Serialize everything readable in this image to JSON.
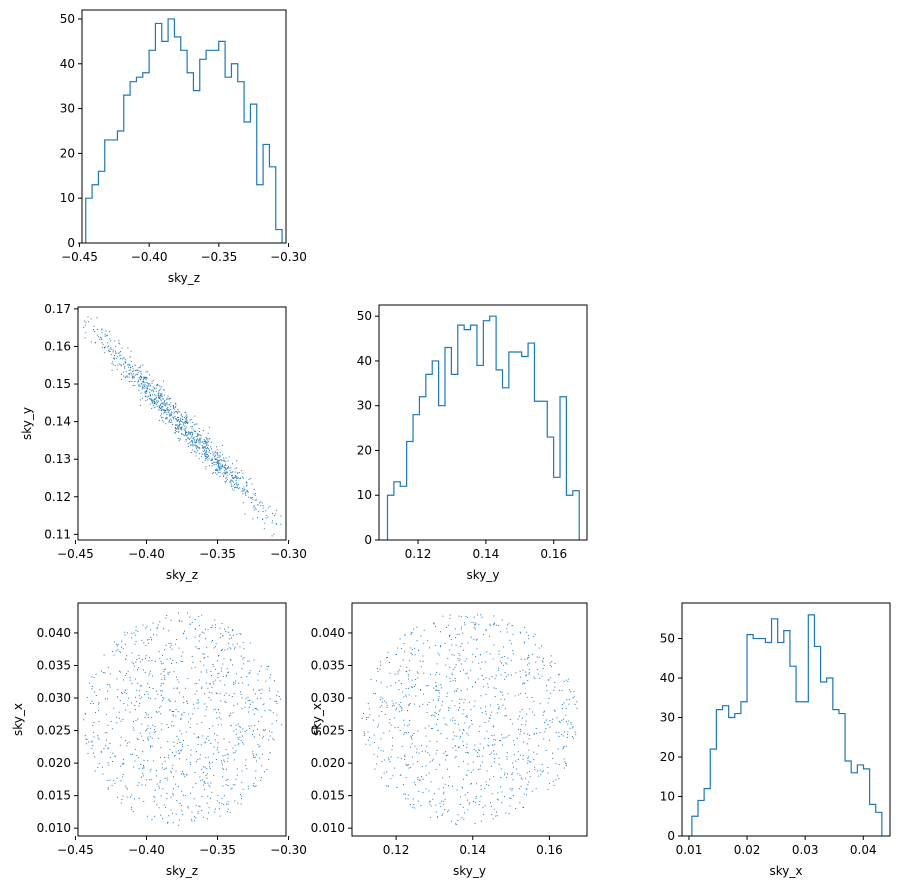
{
  "chart_data": [
    {
      "id": "hist_sky_z",
      "type": "histogram",
      "xlabel": "sky_z",
      "ylabel": "",
      "xlim": [
        -0.4482,
        -0.3018
      ],
      "ylim": [
        0,
        52
      ],
      "xticks": [
        -0.45,
        -0.4,
        -0.35,
        -0.3
      ],
      "xtick_labels": [
        "−0.45",
        "−0.40",
        "−0.35",
        "−0.30"
      ],
      "yticks": [
        0,
        10,
        20,
        30,
        40,
        50
      ],
      "ytick_labels": [
        "0",
        "10",
        "20",
        "30",
        "40",
        "50"
      ],
      "bin_range": [
        -0.4455,
        -0.3046
      ],
      "counts": [
        10,
        13,
        16,
        23,
        23,
        25,
        33,
        36,
        37,
        38,
        43,
        49,
        45,
        50,
        46,
        43,
        38,
        34,
        41,
        43,
        43,
        45,
        37,
        40,
        36,
        27,
        31,
        13,
        22,
        17,
        3
      ]
    },
    {
      "id": "scatter_sky_z_sky_y",
      "type": "scatter",
      "xlabel": "sky_z",
      "ylabel": "sky_y",
      "xlim": [
        -0.4482,
        -0.3018
      ],
      "ylim": [
        0.1085,
        0.1705
      ],
      "xticks": [
        -0.45,
        -0.4,
        -0.35,
        -0.3
      ],
      "xtick_labels": [
        "−0.45",
        "−0.40",
        "−0.35",
        "−0.30"
      ],
      "yticks": [
        0.11,
        0.12,
        0.13,
        0.14,
        0.15,
        0.16,
        0.17
      ],
      "ytick_labels": [
        "0.11",
        "0.12",
        "0.13",
        "0.14",
        "0.15",
        "0.16",
        "0.17"
      ],
      "n_points": 1000,
      "relation": "y ≈ 0.1385 − 0.382·(x + 0.376), narrow band",
      "x_range": [
        -0.4455,
        -0.3046
      ],
      "y_range": [
        0.111,
        0.1675
      ]
    },
    {
      "id": "hist_sky_y",
      "type": "histogram",
      "xlabel": "sky_y",
      "ylabel": "",
      "xlim": [
        0.1085,
        0.1698
      ],
      "ylim": [
        0,
        52.5
      ],
      "xticks": [
        0.12,
        0.14,
        0.16
      ],
      "xtick_labels": [
        "0.12",
        "0.14",
        "0.16"
      ],
      "yticks": [
        0,
        10,
        20,
        30,
        40,
        50
      ],
      "ytick_labels": [
        "0",
        "10",
        "20",
        "30",
        "40",
        "50"
      ],
      "bin_range": [
        0.111,
        0.1675
      ],
      "counts": [
        10,
        13,
        12,
        22,
        28,
        32,
        37,
        40,
        30,
        43,
        37,
        48,
        47,
        48,
        39,
        49,
        50,
        38,
        34,
        42,
        42,
        41,
        44,
        31,
        31,
        23,
        14,
        32,
        10,
        11
      ]
    },
    {
      "id": "scatter_sky_z_sky_x",
      "type": "scatter",
      "xlabel": "sky_z",
      "ylabel": "sky_x",
      "xlim": [
        -0.4482,
        -0.3018
      ],
      "ylim": [
        0.0088,
        0.0446
      ],
      "xticks": [
        -0.45,
        -0.4,
        -0.35,
        -0.3
      ],
      "xtick_labels": [
        "−0.45",
        "−0.40",
        "−0.35",
        "−0.30"
      ],
      "yticks": [
        0.01,
        0.015,
        0.02,
        0.025,
        0.03,
        0.035,
        0.04
      ],
      "ytick_labels": [
        "0.010",
        "0.015",
        "0.020",
        "0.025",
        "0.030",
        "0.035",
        "0.040"
      ],
      "n_points": 1000,
      "relation": "uncorrelated, roughly circular cloud",
      "x_range": [
        -0.4455,
        -0.3046
      ],
      "y_range": [
        0.0105,
        0.0432
      ]
    },
    {
      "id": "scatter_sky_y_sky_x",
      "type": "scatter",
      "xlabel": "sky_y",
      "ylabel": "sky_x",
      "xlim": [
        0.1085,
        0.1698
      ],
      "ylim": [
        0.0088,
        0.0446
      ],
      "xticks": [
        0.12,
        0.14,
        0.16
      ],
      "xtick_labels": [
        "0.12",
        "0.14",
        "0.16"
      ],
      "yticks": [
        0.01,
        0.015,
        0.02,
        0.025,
        0.03,
        0.035,
        0.04
      ],
      "ytick_labels": [
        "0.010",
        "0.015",
        "0.020",
        "0.025",
        "0.030",
        "0.035",
        "0.040"
      ],
      "n_points": 1000,
      "relation": "uncorrelated, roughly circular cloud",
      "x_range": [
        0.111,
        0.1675
      ],
      "y_range": [
        0.0105,
        0.0432
      ]
    },
    {
      "id": "hist_sky_x",
      "type": "histogram",
      "xlabel": "sky_x",
      "ylabel": "",
      "xlim": [
        0.0088,
        0.0446
      ],
      "ylim": [
        0,
        59
      ],
      "xticks": [
        0.01,
        0.02,
        0.03,
        0.04
      ],
      "xtick_labels": [
        "0.01",
        "0.02",
        "0.03",
        "0.04"
      ],
      "yticks": [
        0,
        10,
        20,
        30,
        40,
        50
      ],
      "ytick_labels": [
        "0",
        "10",
        "20",
        "30",
        "40",
        "50"
      ],
      "bin_range": [
        0.0105,
        0.0432
      ],
      "counts": [
        5,
        9,
        12,
        22,
        32,
        33,
        30,
        31,
        34,
        51,
        50,
        50,
        49,
        55,
        49,
        52,
        43,
        34,
        34,
        56,
        48,
        39,
        40,
        32,
        31,
        19,
        16,
        18,
        17,
        8,
        6
      ]
    }
  ]
}
